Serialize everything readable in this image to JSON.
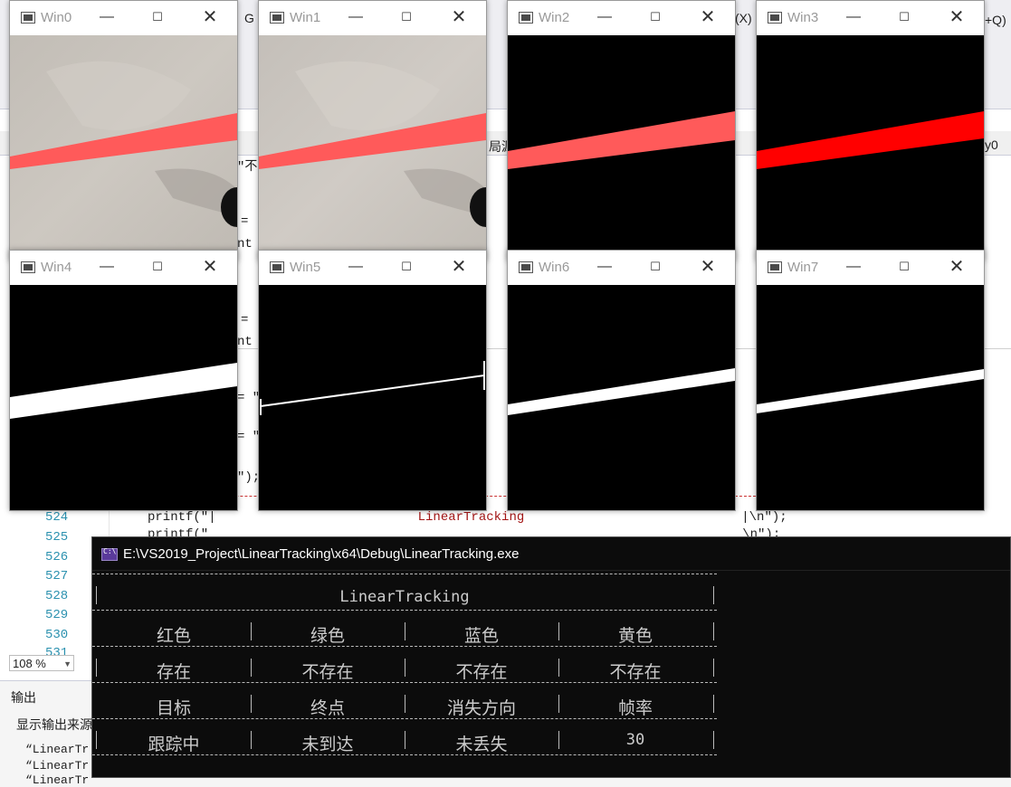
{
  "ide": {
    "fragments": {
      "menu_fragment_left": "G",
      "menu_fragment_right": "(X)",
      "search_fragment": "+Q)",
      "tab_fragment": "局源",
      "ident_fragment": "y0",
      "code_fragments": [
        "\"不",
        "=",
        "nt",
        "=",
        "nt",
        "= \"",
        "= \"",
        "\");"
      ]
    },
    "line_numbers": [
      "524",
      "525",
      "526",
      "527",
      "528",
      "529",
      "530",
      "531"
    ],
    "code_lines": [
      {
        "prefix": "printf(\"|",
        "string": "LinearTracking",
        "suffix": "|\\n\");"
      },
      {
        "prefix": "printf(\"",
        "string": "",
        "suffix": "\\n\");"
      }
    ],
    "zoom": "108 %",
    "output_title": "输出",
    "output_source_label": "显示输出来源",
    "output_lines": [
      "“LinearTr",
      "“LinearTr",
      "“LinearTr"
    ]
  },
  "windows": [
    {
      "title": "Win0",
      "kind": "photo"
    },
    {
      "title": "Win1",
      "kind": "photo"
    },
    {
      "title": "Win2",
      "kind": "red-on-black"
    },
    {
      "title": "Win3",
      "kind": "pure-red-on-black"
    },
    {
      "title": "Win4",
      "kind": "binary-thick"
    },
    {
      "title": "Win5",
      "kind": "binary-line"
    },
    {
      "title": "Win6",
      "kind": "binary-medium"
    },
    {
      "title": "Win7",
      "kind": "binary-thin"
    }
  ],
  "window_controls": {
    "minimize": "—",
    "maximize": "☐",
    "close": "✕"
  },
  "console": {
    "title": "E:\\VS2019_Project\\LinearTracking\\x64\\Debug\\LinearTracking.exe",
    "header": "LinearTracking",
    "rows": [
      [
        "红色",
        "绿色",
        "蓝色",
        "黄色"
      ],
      [
        "存在",
        "不存在",
        "不存在",
        "不存在"
      ],
      [
        "目标",
        "终点",
        "消失方向",
        "帧率"
      ],
      [
        "跟踪中",
        "未到达",
        "未丢失",
        "30"
      ]
    ]
  },
  "colors": {
    "laser_red": "#ff5a5a",
    "pure_red": "#ff0000",
    "photo_bg": "#c9c4bd",
    "console_bg": "#0c0c0c"
  }
}
